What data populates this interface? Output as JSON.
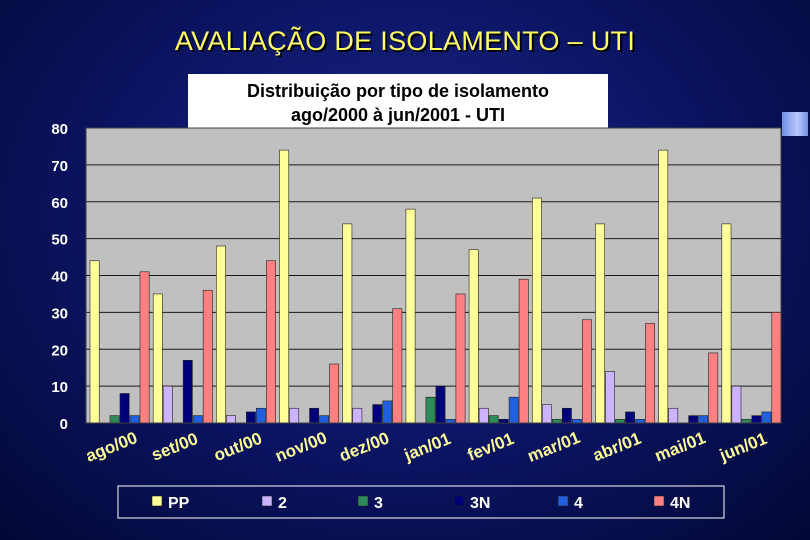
{
  "slide": {
    "title": "AVALIAÇÃO DE ISOLAMENTO – UTI"
  },
  "chart_data": {
    "type": "bar",
    "title": "Distribuição por tipo de isolamento",
    "subtitle": "ago/2000 à jun/2001 - UTI",
    "xlabel": "",
    "ylabel": "",
    "ylim": [
      0,
      80
    ],
    "yticks": [
      "0",
      "10",
      "20",
      "30",
      "40",
      "50",
      "60",
      "70",
      "80"
    ],
    "grid": true,
    "legend_position": "bottom",
    "categories": [
      "ago/00",
      "set/00",
      "out/00",
      "nov/00",
      "dez/00",
      "jan/01",
      "fev/01",
      "mar/01",
      "abr/01",
      "mai/01",
      "jun/01"
    ],
    "series": [
      {
        "name": "PP",
        "color": "#ffff99",
        "values": [
          44,
          35,
          48,
          74,
          54,
          58,
          47,
          61,
          54,
          74,
          54
        ]
      },
      {
        "name": "2",
        "color": "#ccb3ff",
        "values": [
          0,
          10,
          2,
          4,
          4,
          0,
          4,
          5,
          14,
          4,
          10
        ]
      },
      {
        "name": "3",
        "color": "#2e8b57",
        "values": [
          2,
          0,
          0,
          0,
          0,
          7,
          2,
          1,
          1,
          0,
          1
        ]
      },
      {
        "name": "3N",
        "color": "#00007a",
        "values": [
          8,
          17,
          3,
          4,
          5,
          10,
          1,
          4,
          3,
          2,
          2
        ]
      },
      {
        "name": "4",
        "color": "#1f5fe0",
        "values": [
          2,
          2,
          4,
          2,
          6,
          1,
          7,
          1,
          1,
          2,
          3
        ]
      },
      {
        "name": "4N",
        "color": "#ff8080",
        "values": [
          41,
          36,
          44,
          16,
          31,
          35,
          39,
          28,
          27,
          19,
          30
        ]
      }
    ]
  }
}
